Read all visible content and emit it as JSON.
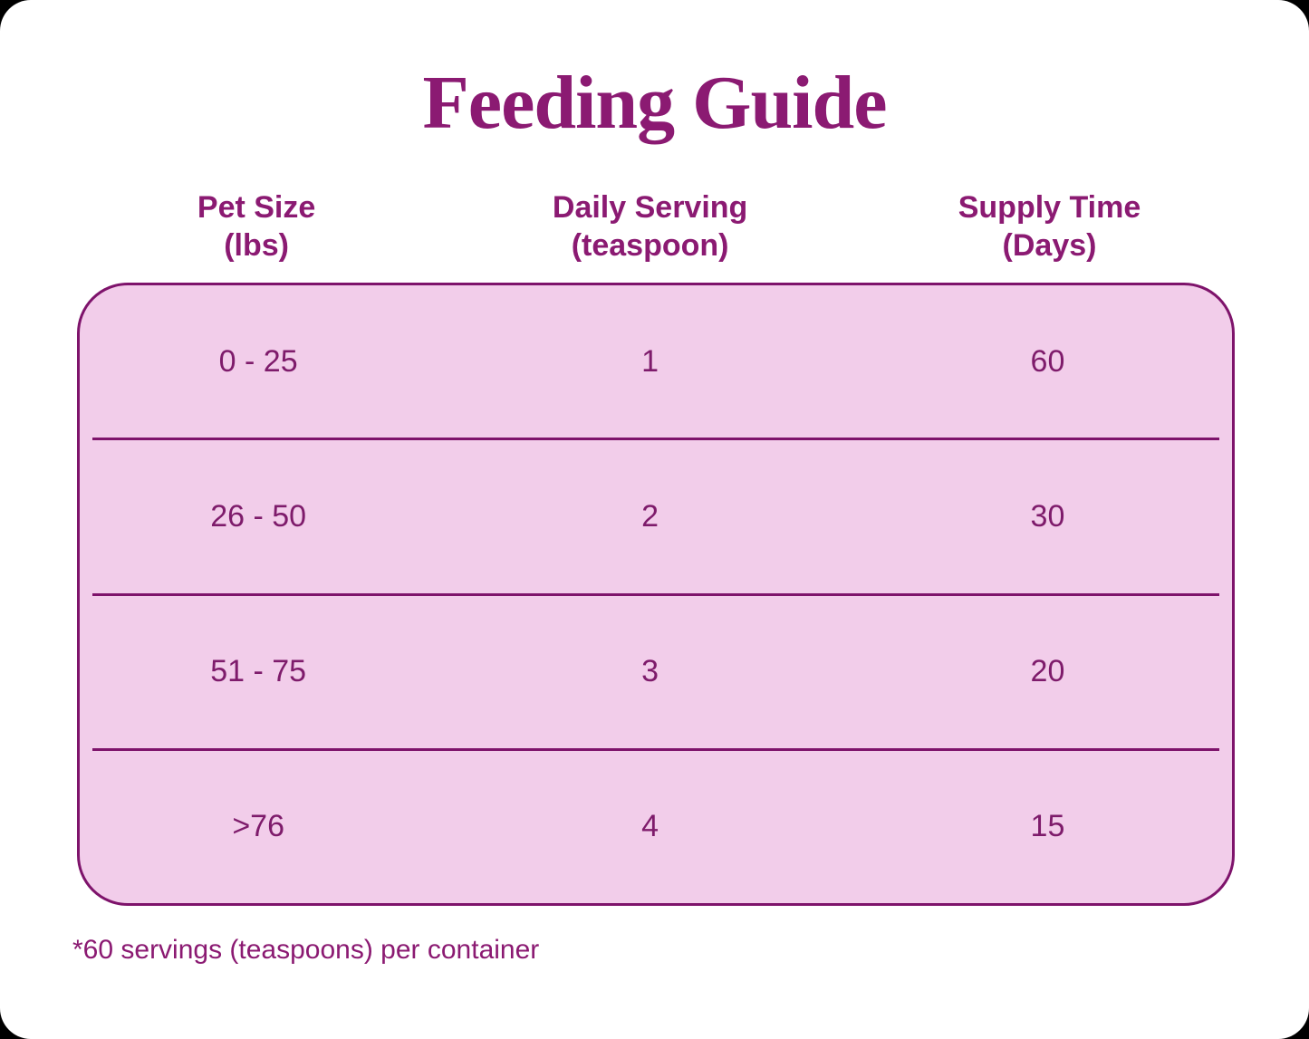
{
  "page": {
    "title": "Feeding Guide",
    "footnote": "*60 servings (teaspoons) per container"
  },
  "colors": {
    "accent_text": "#8B1A72",
    "cell_text": "#7E1B6B",
    "table_background": "#F2CDEA",
    "table_border": "#7E136B",
    "card_background": "#FFFFFF"
  },
  "table": {
    "headers": [
      {
        "line1": "Pet Size",
        "line2": "(lbs)"
      },
      {
        "line1": "Daily Serving",
        "line2": "(teaspoon)"
      },
      {
        "line1": "Supply Time",
        "line2": "(Days)"
      }
    ],
    "rows": [
      {
        "pet_size": "0 - 25",
        "daily_serving": "1",
        "supply_time": "60"
      },
      {
        "pet_size": "26 - 50",
        "daily_serving": "2",
        "supply_time": "30"
      },
      {
        "pet_size": "51 - 75",
        "daily_serving": "3",
        "supply_time": "20"
      },
      {
        "pet_size": ">76",
        "daily_serving": "4",
        "supply_time": "15"
      }
    ]
  },
  "chart_data": {
    "type": "table",
    "title": "Feeding Guide",
    "columns": [
      "Pet Size (lbs)",
      "Daily Serving (teaspoon)",
      "Supply Time (Days)"
    ],
    "rows": [
      [
        "0 - 25",
        1,
        60
      ],
      [
        "26 - 50",
        2,
        30
      ],
      [
        "51 - 75",
        3,
        20
      ],
      [
        ">76",
        4,
        15
      ]
    ],
    "footnote": "*60 servings (teaspoons) per container",
    "layout": {
      "grid": "horizontal separators only",
      "legend": "none"
    }
  }
}
